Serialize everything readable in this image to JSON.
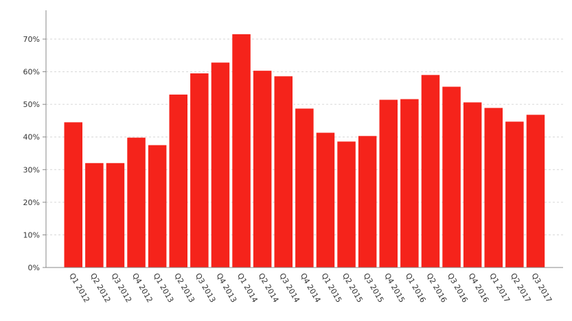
{
  "chart_data": {
    "type": "bar",
    "title": "",
    "xlabel": "",
    "ylabel": "",
    "ylim": [
      0,
      70
    ],
    "yticks": [
      "0%",
      "10%",
      "20%",
      "30%",
      "40%",
      "50%",
      "60%",
      "70%"
    ],
    "ytick_values": [
      0,
      10,
      20,
      30,
      40,
      50,
      60,
      70
    ],
    "grid": "horizontal dashed",
    "legend": "none",
    "bar_color": "#f5231b",
    "categories": [
      "Q1 2012",
      "Q2 2012",
      "Q3 2012",
      "Q4 2012",
      "Q1 2013",
      "Q2 2013",
      "Q3 2013",
      "Q4 2013",
      "Q1 2014",
      "Q2 2014",
      "Q3 2014",
      "Q4 2014",
      "Q1 2015",
      "Q2 2015",
      "Q3 2015",
      "Q4 2015",
      "Q1 2016",
      "Q2 2016",
      "Q3 2016",
      "Q4 2016",
      "Q1 2017",
      "Q2 2017",
      "Q3 2017"
    ],
    "values": [
      44.5,
      32,
      32,
      39.8,
      37.5,
      53,
      59.5,
      62.8,
      71.5,
      60.3,
      58.6,
      48.7,
      41.3,
      38.6,
      40.3,
      51.4,
      51.6,
      59,
      55.4,
      50.6,
      48.9,
      44.7,
      46.8
    ]
  }
}
